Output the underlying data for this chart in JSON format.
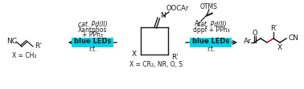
{
  "bg_color": "#ffffff",
  "cyan_color": "#00d4e8",
  "red_color": "#cc0000",
  "black": "#1a1a1a",
  "fig_width": 3.78,
  "fig_height": 1.11,
  "dpi": 100,
  "left_arrow_label_line1": "cat. Pd(II)",
  "left_arrow_label_line2": "Xantphos",
  "left_arrow_label_line3": "+ PPh₃",
  "left_led_label": "blue LEDs",
  "left_rt_label": "r.t.",
  "right_arrow_label_line1": "cat. Pd(II)",
  "right_arrow_label_line2": "dppf + PPh₃",
  "right_led_label": "blue LEDs",
  "right_rt_label": "r.t.",
  "otms_label": "OTMS",
  "center_x_label": "X = CR₂, NR, O, S",
  "left_x_label": "X = CH₂"
}
